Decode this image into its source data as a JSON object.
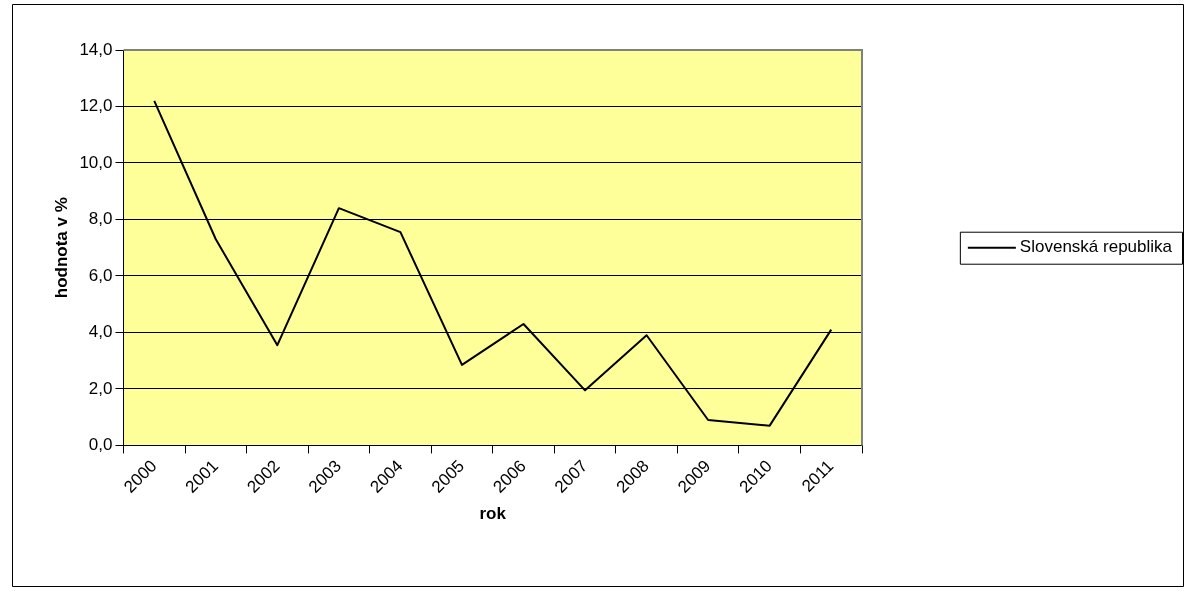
{
  "chart_data": {
    "type": "line",
    "xlabel": "rok",
    "ylabel": "hodnota v %",
    "categories": [
      "2000",
      "2001",
      "2002",
      "2003",
      "2004",
      "2005",
      "2006",
      "2007",
      "2008",
      "2009",
      "2010",
      "2011"
    ],
    "series": [
      {
        "name": "Slovenská republika",
        "color": "#000000",
        "values": [
          12.2,
          7.3,
          3.55,
          8.4,
          7.55,
          2.85,
          4.3,
          1.95,
          3.9,
          0.9,
          0.7,
          4.1
        ]
      }
    ],
    "ylim": [
      0,
      14
    ],
    "yticks": [
      {
        "value": 0,
        "label": "0,0"
      },
      {
        "value": 2,
        "label": "2,0"
      },
      {
        "value": 4,
        "label": "4,0"
      },
      {
        "value": 6,
        "label": "6,0"
      },
      {
        "value": 8,
        "label": "8,0"
      },
      {
        "value": 10,
        "label": "10,0"
      },
      {
        "value": 12,
        "label": "12,0"
      },
      {
        "value": 14,
        "label": "14,0"
      }
    ],
    "grid": "y",
    "legend": "right",
    "marker": "none",
    "line_style": "solid"
  }
}
